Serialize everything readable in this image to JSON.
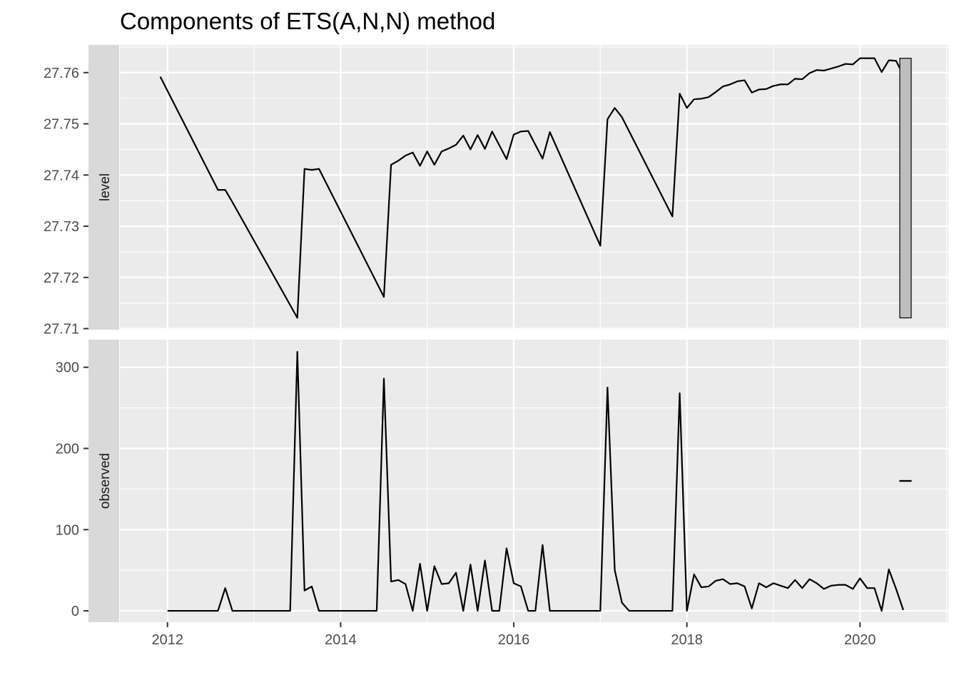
{
  "chart_data": {
    "type": "line",
    "title": "Components of ETS(A,N,N) method",
    "x_ticks": [
      {
        "value": 2012,
        "label": "2012"
      },
      {
        "value": 2014,
        "label": "2014"
      },
      {
        "value": 2016,
        "label": "2016"
      },
      {
        "value": 2018,
        "label": "2018"
      },
      {
        "value": 2020,
        "label": "2020"
      }
    ],
    "xlim": [
      2011.45,
      2021.02
    ],
    "grid": true,
    "panels": [
      {
        "strip_label": "level",
        "ylim": [
          27.7098,
          27.7654
        ],
        "y_ticks": [
          {
            "value": 27.71,
            "label": "27.71"
          },
          {
            "value": 27.72,
            "label": "27.72"
          },
          {
            "value": 27.73,
            "label": "27.73"
          },
          {
            "value": 27.74,
            "label": "27.74"
          },
          {
            "value": 27.75,
            "label": "27.75"
          },
          {
            "value": 27.76,
            "label": "27.76"
          }
        ],
        "scale_bar": {
          "from": 27.7121,
          "to": 27.7628
        },
        "x": [
          2011.917,
          2012.583,
          2012.667,
          2012.75,
          2013.5,
          2013.583,
          2013.667,
          2013.75,
          2014.5,
          2014.583,
          2014.667,
          2014.75,
          2014.833,
          2014.917,
          2015.0,
          2015.083,
          2015.167,
          2015.25,
          2015.333,
          2015.417,
          2015.5,
          2015.583,
          2015.667,
          2015.75,
          2015.917,
          2016.0,
          2016.083,
          2016.167,
          2016.25,
          2016.333,
          2016.417,
          2017.0,
          2017.083,
          2017.167,
          2017.25,
          2017.833,
          2017.917,
          2018.0,
          2018.083,
          2018.167,
          2018.25,
          2018.333,
          2018.417,
          2018.5,
          2018.583,
          2018.667,
          2018.75,
          2018.833,
          2018.917,
          2019.0,
          2019.083,
          2019.167,
          2019.25,
          2019.333,
          2019.417,
          2019.5,
          2019.583,
          2019.667,
          2019.75,
          2019.833,
          2019.917,
          2020.0,
          2020.083,
          2020.167,
          2020.25,
          2020.333,
          2020.417,
          2020.5
        ],
        "y": [
          27.7592,
          27.7371,
          27.7371,
          27.7347,
          27.7121,
          27.7412,
          27.741,
          27.7412,
          27.7162,
          27.742,
          27.7428,
          27.7438,
          27.7444,
          27.7418,
          27.7446,
          27.742,
          27.7446,
          27.7452,
          27.7459,
          27.7477,
          27.745,
          27.7478,
          27.7451,
          27.7485,
          27.7431,
          27.7479,
          27.7485,
          27.7486,
          27.7459,
          27.7432,
          27.7484,
          27.7262,
          27.7509,
          27.7531,
          27.7513,
          27.7319,
          27.7559,
          27.7531,
          27.7548,
          27.7549,
          27.7552,
          27.7562,
          27.7573,
          27.7577,
          27.7583,
          27.7585,
          27.7561,
          27.7567,
          27.7568,
          27.7574,
          27.7577,
          27.7577,
          27.7588,
          27.7587,
          27.7599,
          27.7605,
          27.7604,
          27.7608,
          27.7612,
          27.7617,
          27.7616,
          27.7628,
          27.7628,
          27.7628,
          27.7601,
          27.7624,
          27.7623,
          27.7595
        ]
      },
      {
        "strip_label": "observed",
        "ylim": [
          -14,
          334
        ],
        "y_ticks": [
          {
            "value": 0,
            "label": "0"
          },
          {
            "value": 100,
            "label": "100"
          },
          {
            "value": 200,
            "label": "200"
          },
          {
            "value": 300,
            "label": "300"
          }
        ],
        "scale_bar": {
          "from": 159.5,
          "to": 160.5
        },
        "x": [
          2012.0,
          2012.583,
          2012.667,
          2012.75,
          2013.417,
          2013.5,
          2013.583,
          2013.667,
          2013.75,
          2014.417,
          2014.5,
          2014.583,
          2014.667,
          2014.75,
          2014.833,
          2014.917,
          2015.0,
          2015.083,
          2015.167,
          2015.25,
          2015.333,
          2015.417,
          2015.5,
          2015.583,
          2015.667,
          2015.75,
          2015.833,
          2015.917,
          2016.0,
          2016.083,
          2016.167,
          2016.25,
          2016.333,
          2016.417,
          2017.0,
          2017.083,
          2017.167,
          2017.25,
          2017.333,
          2017.833,
          2017.917,
          2018.0,
          2018.083,
          2018.167,
          2018.25,
          2018.333,
          2018.417,
          2018.5,
          2018.583,
          2018.667,
          2018.75,
          2018.833,
          2018.917,
          2019.0,
          2019.083,
          2019.167,
          2019.25,
          2019.333,
          2019.417,
          2019.5,
          2019.583,
          2019.667,
          2019.75,
          2019.833,
          2019.917,
          2020.0,
          2020.083,
          2020.167,
          2020.25,
          2020.333,
          2020.417,
          2020.5
        ],
        "y": [
          0,
          0,
          28,
          0,
          0,
          319,
          25,
          30,
          0,
          0,
          286,
          36,
          38,
          33,
          0,
          58,
          0,
          55,
          33,
          34,
          47,
          0,
          57,
          0,
          62,
          0,
          0,
          77,
          34,
          30,
          0,
          0,
          81,
          0,
          0,
          275,
          50,
          10,
          0,
          0,
          268,
          0,
          45,
          29,
          30,
          37,
          39,
          33,
          34,
          30,
          3,
          34,
          29,
          34,
          31,
          28,
          38,
          28,
          39,
          34,
          27,
          31,
          32,
          32,
          27,
          40,
          28,
          28,
          0,
          51,
          27,
          1
        ]
      }
    ]
  }
}
